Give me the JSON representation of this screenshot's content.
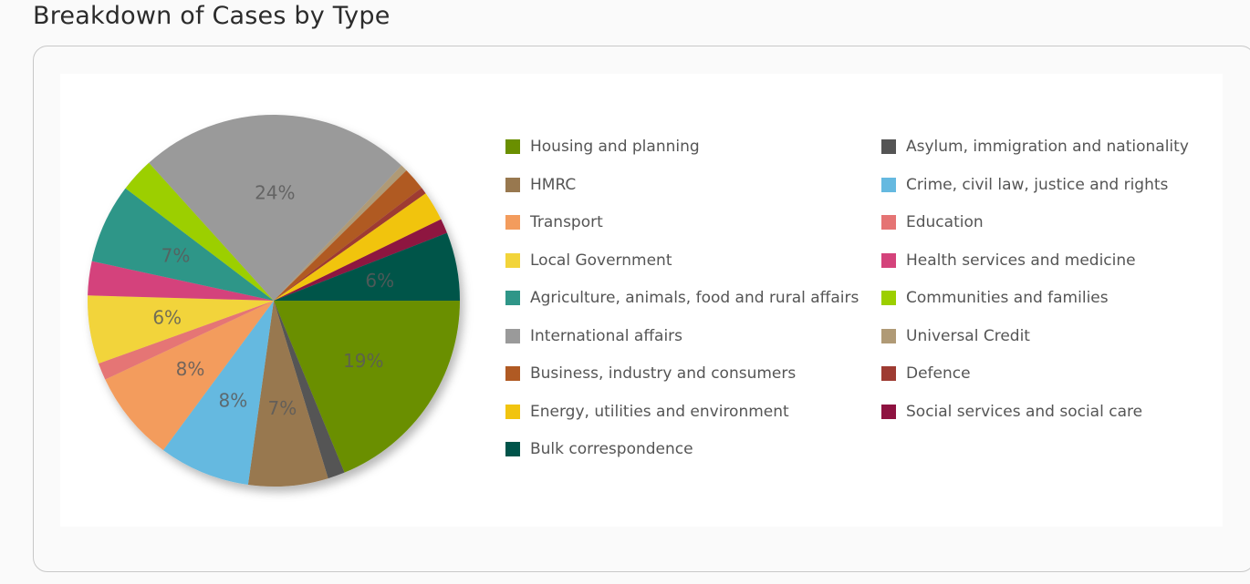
{
  "page": {
    "title": "Breakdown of Cases by Type"
  },
  "chart_data": {
    "type": "pie",
    "title": "Breakdown of Cases by Type",
    "unit": "%",
    "legend_position": "right",
    "slices": [
      {
        "label": "Housing and planning",
        "value": 19,
        "color": "#6a8f00",
        "show_label": true
      },
      {
        "label": "Asylum, immigration and nationality",
        "value": 1.5,
        "color": "#545454",
        "show_label": false
      },
      {
        "label": "HMRC",
        "value": 7,
        "color": "#98784f",
        "show_label": true
      },
      {
        "label": "Crime, civil law, justice and rights",
        "value": 8,
        "color": "#65b9e0",
        "show_label": true
      },
      {
        "label": "Transport",
        "value": 8,
        "color": "#f39c5d",
        "show_label": true
      },
      {
        "label": "Education",
        "value": 1.5,
        "color": "#e57474",
        "show_label": false
      },
      {
        "label": "Local Government",
        "value": 6,
        "color": "#f2d43a",
        "show_label": true
      },
      {
        "label": "Health services and medicine",
        "value": 3,
        "color": "#d4437b",
        "show_label": false
      },
      {
        "label": "Agriculture, animals, food and rural affairs",
        "value": 7,
        "color": "#2f9688",
        "show_label": true
      },
      {
        "label": "Communities and families",
        "value": 3,
        "color": "#9ccf00",
        "show_label": false
      },
      {
        "label": "International affairs",
        "value": 24,
        "color": "#9a9a9a",
        "show_label": true
      },
      {
        "label": "Universal Credit",
        "value": 0.6,
        "color": "#b09a76",
        "show_label": false
      },
      {
        "label": "Business, industry and consumers",
        "value": 2,
        "color": "#b05a23",
        "show_label": false
      },
      {
        "label": "Defence",
        "value": 0.6,
        "color": "#9e3b32",
        "show_label": false
      },
      {
        "label": "Energy, utilities and environment",
        "value": 2.6,
        "color": "#f1c40f",
        "show_label": false
      },
      {
        "label": "Social services and social care",
        "value": 1.3,
        "color": "#8e1240",
        "show_label": false
      },
      {
        "label": "Bulk correspondence",
        "value": 6,
        "color": "#00544a",
        "show_label": true
      }
    ],
    "legend_order": [
      "Housing and planning",
      "Asylum, immigration and nationality",
      "HMRC",
      "Crime, civil law, justice and rights",
      "Transport",
      "Education",
      "Local Government",
      "Health services and medicine",
      "Agriculture, animals, food and rural affairs",
      "Communities and families",
      "International affairs",
      "Universal Credit",
      "Business, industry and consumers",
      "Defence",
      "Energy, utilities and environment",
      "Social services and social care",
      "Bulk correspondence"
    ]
  }
}
